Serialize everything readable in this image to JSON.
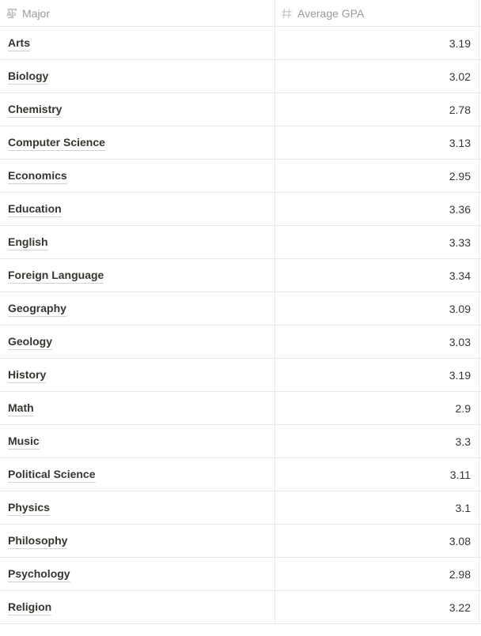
{
  "table": {
    "columns": [
      {
        "label": "Major",
        "icon": "text"
      },
      {
        "label": "Average GPA",
        "icon": "number"
      }
    ],
    "rows": [
      {
        "major": "Arts",
        "gpa": "3.19"
      },
      {
        "major": "Biology",
        "gpa": "3.02"
      },
      {
        "major": "Chemistry",
        "gpa": "2.78"
      },
      {
        "major": "Computer Science",
        "gpa": "3.13"
      },
      {
        "major": "Economics",
        "gpa": "2.95"
      },
      {
        "major": "Education",
        "gpa": "3.36"
      },
      {
        "major": "English",
        "gpa": "3.33"
      },
      {
        "major": "Foreign Language",
        "gpa": "3.34"
      },
      {
        "major": "Geography",
        "gpa": "3.09"
      },
      {
        "major": "Geology",
        "gpa": "3.03"
      },
      {
        "major": "History",
        "gpa": "3.19"
      },
      {
        "major": "Math",
        "gpa": "2.9"
      },
      {
        "major": "Music",
        "gpa": "3.3"
      },
      {
        "major": "Political Science",
        "gpa": "3.11"
      },
      {
        "major": "Physics",
        "gpa": "3.1"
      },
      {
        "major": "Philosophy",
        "gpa": "3.08"
      },
      {
        "major": "Psychology",
        "gpa": "2.98"
      },
      {
        "major": "Religion",
        "gpa": "3.22"
      }
    ]
  }
}
